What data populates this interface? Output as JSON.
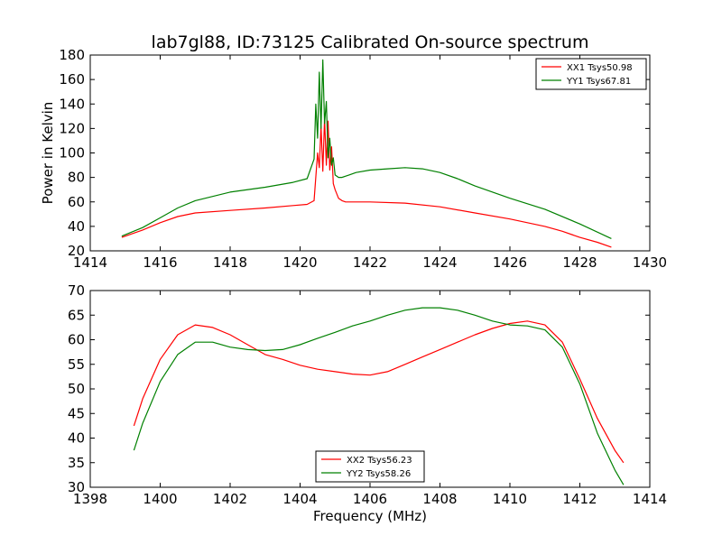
{
  "figure": {
    "title": "lab7gl88, ID:73125 Calibrated On-source spectrum"
  },
  "chart_data": [
    {
      "type": "line",
      "title": "lab7gl88, ID:73125 Calibrated On-source spectrum",
      "xlabel": "",
      "ylabel": "Power in Kelvin",
      "xlim": [
        1414,
        1430
      ],
      "ylim": [
        20,
        180
      ],
      "xticks": [
        1414,
        1416,
        1418,
        1420,
        1422,
        1424,
        1426,
        1428,
        1430
      ],
      "yticks": [
        20,
        40,
        60,
        80,
        100,
        120,
        140,
        160,
        180
      ],
      "grid": false,
      "legend_position": "top-right",
      "series": [
        {
          "name": "XX1 Tsys50.98",
          "color": "#ff0000",
          "x": [
            1414.9,
            1415.5,
            1416.0,
            1416.5,
            1417.0,
            1418.0,
            1419.0,
            1419.8,
            1420.2,
            1420.4,
            1420.5,
            1420.55,
            1420.6,
            1420.65,
            1420.7,
            1420.75,
            1420.8,
            1420.85,
            1420.9,
            1420.95,
            1421.0,
            1421.1,
            1421.2,
            1421.3,
            1421.5,
            1422.0,
            1423.0,
            1424.0,
            1425.0,
            1426.0,
            1427.0,
            1427.5,
            1428.0,
            1428.5,
            1428.9
          ],
          "y": [
            31,
            37,
            43,
            48,
            51,
            53,
            55,
            57,
            58,
            61,
            100,
            88,
            122,
            85,
            128,
            90,
            126,
            86,
            105,
            75,
            70,
            63,
            61,
            60,
            60,
            60,
            59,
            56,
            51,
            46,
            40,
            36,
            31,
            27,
            23
          ]
        },
        {
          "name": "YY1 Tsys67.81",
          "color": "#008000",
          "x": [
            1414.9,
            1415.5,
            1416.0,
            1416.5,
            1417.0,
            1418.0,
            1419.0,
            1419.8,
            1420.2,
            1420.4,
            1420.45,
            1420.5,
            1420.55,
            1420.6,
            1420.65,
            1420.7,
            1420.75,
            1420.8,
            1420.85,
            1420.9,
            1420.95,
            1421.0,
            1421.1,
            1421.2,
            1421.4,
            1421.6,
            1422.0,
            1422.5,
            1423.0,
            1423.5,
            1424.0,
            1424.5,
            1425.0,
            1426.0,
            1427.0,
            1428.0,
            1428.9
          ],
          "y": [
            32,
            39,
            47,
            55,
            61,
            68,
            72,
            76,
            79,
            95,
            140,
            112,
            166,
            120,
            176,
            124,
            142,
            96,
            112,
            90,
            96,
            82,
            80,
            80,
            82,
            84,
            86,
            87,
            88,
            87,
            84,
            79,
            73,
            63,
            54,
            42,
            30
          ]
        }
      ]
    },
    {
      "type": "line",
      "title": "",
      "xlabel": "Frequency (MHz)",
      "ylabel": "",
      "xlim": [
        1398,
        1414
      ],
      "ylim": [
        30,
        70
      ],
      "xticks": [
        1398,
        1400,
        1402,
        1404,
        1406,
        1408,
        1410,
        1412,
        1414
      ],
      "yticks": [
        30,
        35,
        40,
        45,
        50,
        55,
        60,
        65,
        70
      ],
      "grid": false,
      "legend_position": "bottom-center",
      "series": [
        {
          "name": "XX2 Tsys56.23",
          "color": "#ff0000",
          "x": [
            1399.25,
            1399.5,
            1400.0,
            1400.5,
            1401.0,
            1401.5,
            1402.0,
            1402.5,
            1403.0,
            1403.5,
            1404.0,
            1404.5,
            1405.0,
            1405.5,
            1406.0,
            1406.5,
            1407.0,
            1407.5,
            1408.0,
            1408.5,
            1409.0,
            1409.5,
            1410.0,
            1410.5,
            1411.0,
            1411.5,
            1412.0,
            1412.5,
            1413.0,
            1413.25
          ],
          "y": [
            42.5,
            48,
            56,
            61,
            63,
            62.5,
            61,
            59,
            57,
            56,
            54.8,
            54,
            53.5,
            53,
            52.8,
            53.5,
            55,
            56.5,
            58,
            59.5,
            61,
            62.3,
            63.3,
            63.8,
            63,
            59.5,
            52,
            44,
            37.5,
            35
          ]
        },
        {
          "name": "YY2 Tsys58.26",
          "color": "#008000",
          "x": [
            1399.25,
            1399.5,
            1400.0,
            1400.5,
            1401.0,
            1401.5,
            1402.0,
            1402.5,
            1403.0,
            1403.5,
            1404.0,
            1404.5,
            1405.0,
            1405.5,
            1406.0,
            1406.5,
            1407.0,
            1407.5,
            1408.0,
            1408.5,
            1409.0,
            1409.5,
            1410.0,
            1410.5,
            1411.0,
            1411.5,
            1412.0,
            1412.5,
            1413.0,
            1413.25
          ],
          "y": [
            37.5,
            43,
            51.5,
            57,
            59.5,
            59.5,
            58.5,
            58,
            57.8,
            58,
            59,
            60.3,
            61.5,
            62.8,
            63.8,
            65,
            66,
            66.5,
            66.5,
            66,
            65,
            63.8,
            63,
            62.8,
            62,
            58.5,
            51,
            41,
            33.5,
            30.5
          ]
        }
      ]
    }
  ]
}
